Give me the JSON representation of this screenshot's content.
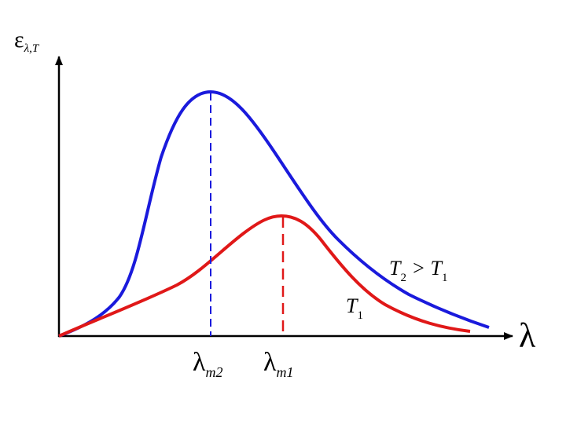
{
  "axes": {
    "y_label": {
      "symbol": "ε",
      "subscript": "λ,T"
    },
    "x_label": "λ"
  },
  "peaks": [
    {
      "symbol": "λ",
      "subscript": "m2"
    },
    {
      "symbol": "λ",
      "subscript": "m1"
    }
  ],
  "curves": [
    {
      "parts": [
        {
          "text": "T"
        },
        {
          "sub": "2"
        },
        {
          "text": " > T"
        },
        {
          "sub": "1"
        }
      ]
    },
    {
      "parts": [
        {
          "text": "T"
        },
        {
          "sub": "1"
        }
      ]
    }
  ]
}
